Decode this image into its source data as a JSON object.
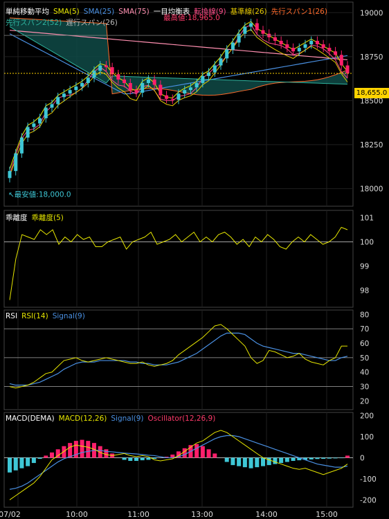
{
  "legends": {
    "main_line1": [
      {
        "text": "単純移動平均",
        "color": "#ffffff"
      },
      {
        "text": "SMA(5)",
        "color": "#e6e600"
      },
      {
        "text": "SMA(25)",
        "color": "#4a90e2"
      },
      {
        "text": "SMA(75)",
        "color": "#ff8fb0"
      },
      {
        "text": "一目均衡表",
        "color": "#ffffff"
      },
      {
        "text": "転換線(9)",
        "color": "#ff4f8b"
      },
      {
        "text": "基準線(26)",
        "color": "#e6c800"
      },
      {
        "text": "先行スパン1(26)",
        "color": "#ff6a2a"
      }
    ],
    "main_line2": [
      {
        "text": "先行スパン2(52)",
        "color": "#2fb5a0"
      },
      {
        "text": "遅行スパン(26)",
        "color": "#bbbbbb"
      }
    ],
    "dev": [
      {
        "text": "乖離度",
        "color": "#ffffff"
      },
      {
        "text": "乖離度(5)",
        "color": "#e6e600"
      }
    ],
    "rsi": [
      {
        "text": "RSI",
        "color": "#ffffff"
      },
      {
        "text": "RSI(14)",
        "color": "#e6e600"
      },
      {
        "text": "Signal(9)",
        "color": "#4a90e2"
      }
    ],
    "macd": [
      {
        "text": "MACD(DEMA)",
        "color": "#ffffff"
      },
      {
        "text": "MACD(12,26)",
        "color": "#e6e600"
      },
      {
        "text": "Signal(9)",
        "color": "#4a90e2"
      },
      {
        "text": "Oscillator(12,26,9)",
        "color": "#ff3b6b"
      }
    ]
  },
  "annotations": {
    "high_label": "最高値:18,965.0",
    "low_label": "最安値:18,000.0",
    "current_price": "18,655.0"
  },
  "colors": {
    "up": "#3ec7d6",
    "down": "#ff1f6b",
    "grid": "#2a2a2a",
    "accent_current": "#ffd400",
    "cloud_bull": "#6b1a2b",
    "cloud_bear": "#0f5a55"
  },
  "chart_data": [
    {
      "type": "candlestick",
      "title": "",
      "x_ticks": [
        "07/02",
        "10:00",
        "11:00",
        "13:00",
        "14:00",
        "15:00"
      ],
      "y_ticks": [
        "19000",
        "18750",
        "18500",
        "18250",
        "18000"
      ],
      "ylim": [
        17900,
        19060
      ],
      "high": 18965.0,
      "low": 18000.0,
      "current": 18655.0,
      "close": [
        18100,
        18200,
        18290,
        18350,
        18370,
        18400,
        18460,
        18480,
        18520,
        18540,
        18560,
        18580,
        18600,
        18630,
        18670,
        18700,
        18690,
        18650,
        18620,
        18600,
        18560,
        18545,
        18600,
        18620,
        18590,
        18530,
        18510,
        18505,
        18540,
        18560,
        18575,
        18600,
        18640,
        18660,
        18700,
        18740,
        18790,
        18830,
        18880,
        18920,
        18940,
        18900,
        18880,
        18860,
        18840,
        18820,
        18800,
        18780,
        18800,
        18820,
        18840,
        18820,
        18800,
        18780,
        18760,
        18700,
        18655
      ]
    },
    {
      "type": "line",
      "title": "",
      "y_ticks": [
        "101",
        "100",
        "99",
        "98"
      ],
      "ylim": [
        97.3,
        101.3
      ],
      "series": [
        {
          "name": "乖離度(5)",
          "values": [
            97.6,
            99.3,
            100.3,
            100.2,
            100.1,
            100.5,
            100.3,
            100.5,
            99.9,
            100.2,
            100.0,
            100.3,
            100.1,
            100.2,
            99.8,
            99.8,
            100.0,
            100.1,
            100.2,
            99.7,
            100.0,
            100.1,
            100.2,
            100.4,
            99.9,
            100.0,
            100.1,
            100.3,
            100.0,
            100.2,
            100.4,
            100.0,
            100.2,
            100.0,
            100.3,
            100.4,
            100.2,
            99.9,
            100.1,
            99.8,
            100.2,
            100.0,
            100.3,
            100.1,
            99.8,
            99.7,
            100.0,
            100.2,
            100.0,
            100.3,
            100.1,
            99.9,
            100.0,
            100.2,
            100.6,
            100.5
          ]
        }
      ]
    },
    {
      "type": "line",
      "title": "",
      "y_ticks": [
        "80",
        "70",
        "60",
        "50",
        "40",
        "30",
        "20"
      ],
      "ylim": [
        14,
        83
      ],
      "series": [
        {
          "name": "RSI(14)",
          "values": [
            30,
            29,
            30,
            31,
            33,
            36,
            39,
            40,
            44,
            48,
            49,
            50,
            48,
            47,
            48,
            49,
            50,
            49,
            48,
            47,
            46,
            46,
            47,
            45,
            44,
            45,
            46,
            48,
            52,
            55,
            58,
            61,
            64,
            68,
            72,
            73,
            70,
            66,
            62,
            58,
            50,
            46,
            48,
            55,
            54,
            52,
            50,
            51,
            53,
            49,
            47,
            46,
            45,
            48,
            50,
            58,
            58
          ]
        },
        {
          "name": "Signal(9)",
          "values": [
            32,
            31,
            31,
            31,
            32,
            33,
            35,
            37,
            39,
            42,
            44,
            46,
            47,
            47,
            47,
            48,
            48,
            48,
            48,
            48,
            47,
            47,
            46,
            46,
            45,
            45,
            45,
            46,
            47,
            49,
            51,
            53,
            56,
            59,
            62,
            65,
            67,
            67,
            67,
            66,
            63,
            60,
            58,
            57,
            56,
            55,
            54,
            53,
            53,
            52,
            51,
            50,
            49,
            48,
            48,
            50,
            51
          ]
        }
      ]
    },
    {
      "type": "bar+line",
      "title": "",
      "y_ticks": [
        "200",
        "100",
        "0",
        "-100",
        "-200"
      ],
      "ylim": [
        -235,
        215
      ],
      "oscillator": [
        -70,
        -60,
        -50,
        -40,
        -25,
        -5,
        10,
        25,
        40,
        55,
        70,
        80,
        85,
        80,
        70,
        55,
        40,
        20,
        0,
        -10,
        -15,
        -15,
        -12,
        -10,
        -5,
        0,
        5,
        15,
        30,
        45,
        60,
        65,
        55,
        40,
        20,
        0,
        -20,
        -35,
        -40,
        -45,
        -50,
        -45,
        -40,
        -35,
        -30,
        -25,
        -20,
        -15,
        -12,
        -10,
        -8,
        -6,
        -5,
        -4,
        -3,
        -2,
        10
      ],
      "series": [
        {
          "name": "MACD(12,26)",
          "values": [
            -200,
            -180,
            -160,
            -140,
            -120,
            -90,
            -50,
            -10,
            10,
            30,
            50,
            60,
            55,
            50,
            40,
            25,
            15,
            10,
            15,
            20,
            10,
            5,
            10,
            5,
            -10,
            -15,
            -10,
            -5,
            10,
            30,
            50,
            70,
            80,
            100,
            120,
            130,
            120,
            100,
            80,
            60,
            40,
            20,
            0,
            -10,
            -20,
            -30,
            -40,
            -50,
            -55,
            -50,
            -60,
            -70,
            -80,
            -70,
            -60,
            -50,
            -30
          ]
        },
        {
          "name": "Signal(9)",
          "values": [
            -150,
            -145,
            -135,
            -120,
            -100,
            -80,
            -60,
            -40,
            -20,
            -5,
            5,
            15,
            25,
            30,
            35,
            35,
            30,
            28,
            25,
            22,
            20,
            18,
            15,
            12,
            10,
            5,
            0,
            0,
            5,
            15,
            30,
            45,
            60,
            75,
            90,
            100,
            105,
            105,
            100,
            90,
            80,
            70,
            60,
            50,
            40,
            30,
            20,
            10,
            0,
            -10,
            -20,
            -30,
            -35,
            -40,
            -45,
            -45,
            -40
          ]
        }
      ]
    }
  ]
}
